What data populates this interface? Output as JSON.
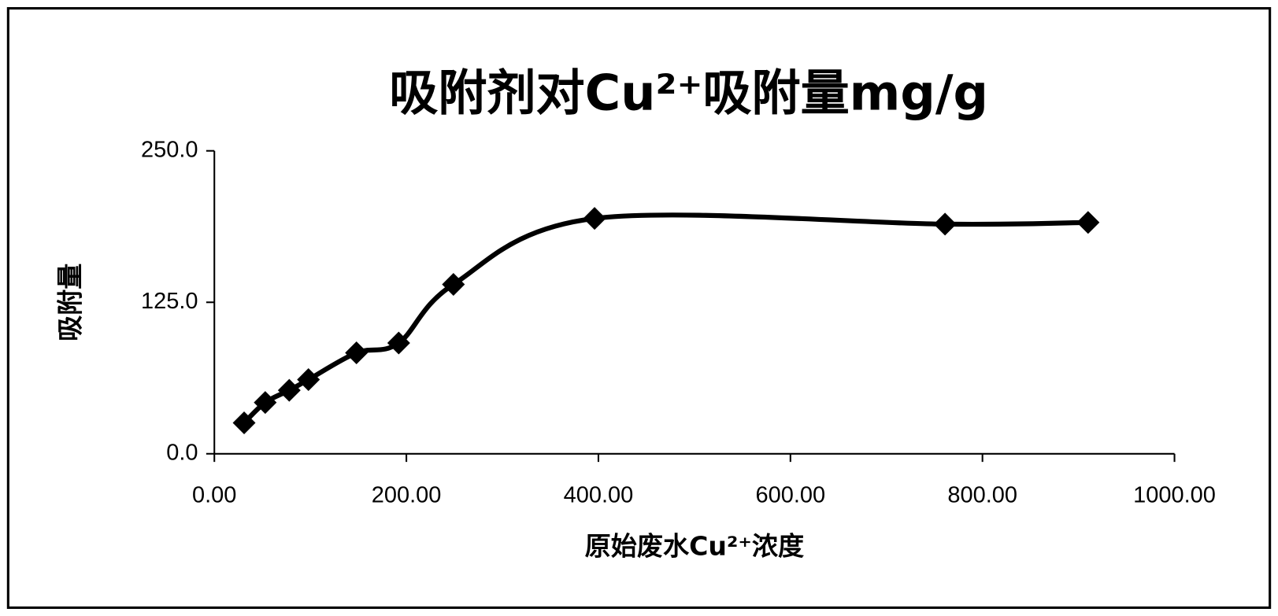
{
  "chart_data": {
    "type": "scatter",
    "title": "吸附剂对Cu²⁺吸附量mg/g",
    "x_label": "原始废水Cu²⁺浓度",
    "y_label": "吸附量",
    "x": [
      31,
      53,
      78,
      98,
      148,
      192,
      249,
      396,
      761,
      910
    ],
    "series": [
      {
        "color": "#000000",
        "values": [
          25.5,
          42.3,
          52.4,
          61.2,
          83.3,
          91.4,
          139.8,
          194.2,
          189.5,
          190.9
        ]
      }
    ],
    "xlim": [
      0,
      1000
    ],
    "ylim": [
      0,
      250
    ],
    "xticks": [
      {
        "value": 0,
        "label": "0.00"
      },
      {
        "value": 200,
        "label": "200.00"
      },
      {
        "value": 400,
        "label": "400.00"
      },
      {
        "value": 600,
        "label": "600.00"
      },
      {
        "value": 800,
        "label": "800.00"
      },
      {
        "value": 1000,
        "label": "1000.00"
      }
    ],
    "yticks": [
      {
        "value": 0,
        "label": "0.0"
      },
      {
        "value": 125,
        "label": "125.0"
      },
      {
        "value": 250,
        "label": "250.0"
      }
    ]
  }
}
